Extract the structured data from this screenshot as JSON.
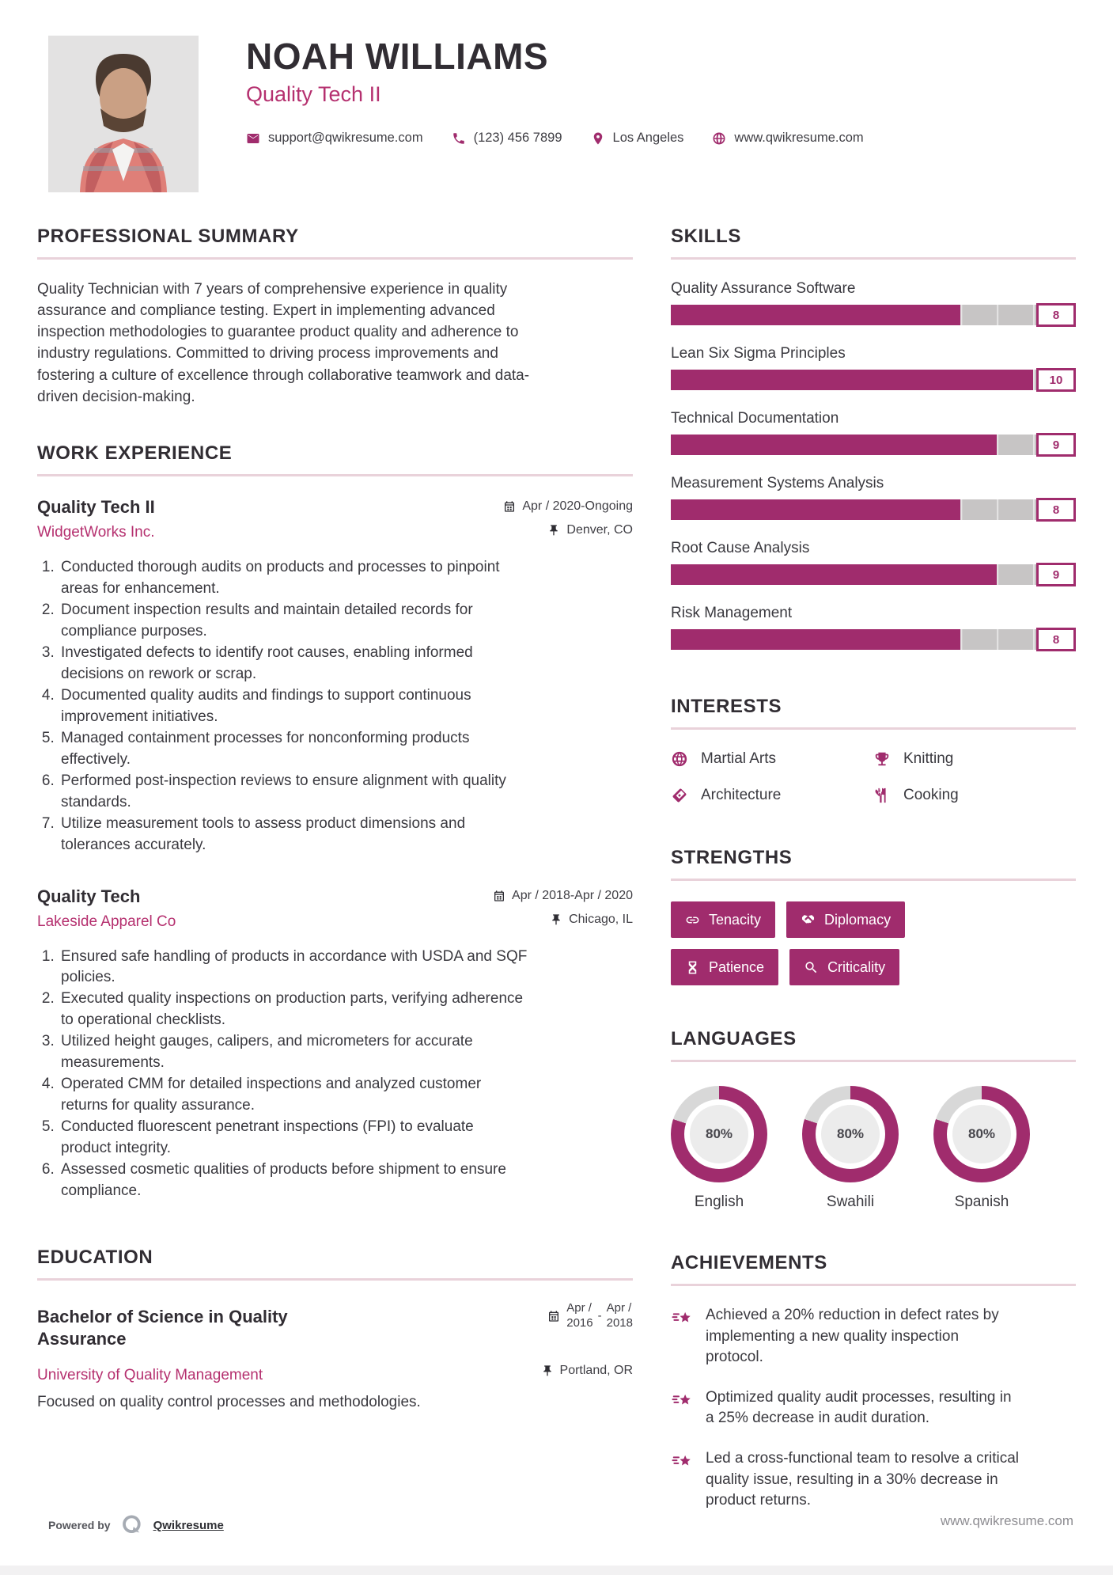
{
  "colors": {
    "primary": "#a02c6d",
    "accent": "#b5306f",
    "rule": "#e9d2da",
    "bar_track": "#c7c5c5",
    "donut_track": "#d8d8d8",
    "donut_inner": "#ececec"
  },
  "header": {
    "name": "NOAH WILLIAMS",
    "title": "Quality Tech II",
    "contact": {
      "email": "support@qwikresume.com",
      "phone": "(123) 456 7899",
      "location": "Los Angeles",
      "website": "www.qwikresume.com"
    }
  },
  "summary": {
    "heading": "PROFESSIONAL SUMMARY",
    "text": "Quality Technician with 7 years of comprehensive experience in quality assurance and compliance testing. Expert in implementing advanced inspection methodologies to guarantee product quality and adherence to industry regulations. Committed to driving process improvements and fostering a culture of excellence through collaborative teamwork and data-driven decision-making."
  },
  "work": {
    "heading": "WORK EXPERIENCE",
    "jobs": [
      {
        "title": "Quality Tech II",
        "company": "WidgetWorks Inc.",
        "dates": "Apr / 2020-Ongoing",
        "location": "Denver, CO",
        "bullets": [
          "Conducted thorough audits on products and processes to pinpoint areas for enhancement.",
          "Document inspection results and maintain detailed records for compliance purposes.",
          "Investigated defects to identify root causes, enabling informed decisions on rework or scrap.",
          "Documented quality audits and findings to support continuous improvement initiatives.",
          "Managed containment processes for nonconforming products effectively.",
          "Performed post-inspection reviews to ensure alignment with quality standards.",
          "Utilize measurement tools to assess product dimensions and tolerances accurately."
        ]
      },
      {
        "title": "Quality Tech",
        "company": "Lakeside Apparel Co",
        "dates": "Apr / 2018-Apr / 2020",
        "location": "Chicago, IL",
        "bullets": [
          "Ensured safe handling of products in accordance with USDA and SQF policies.",
          "Executed quality inspections on production parts, verifying adherence to operational checklists.",
          "Utilized height gauges, calipers, and micrometers for accurate measurements.",
          "Operated CMM for detailed inspections and analyzed customer returns for quality assurance.",
          "Conducted fluorescent penetrant inspections (FPI) to evaluate product integrity.",
          "Assessed cosmetic qualities of products before shipment to ensure compliance."
        ]
      }
    ]
  },
  "education": {
    "heading": "EDUCATION",
    "degree": "Bachelor of Science in Quality Assurance",
    "school": "University of Quality Management",
    "date_start_month": "Apr /",
    "date_start_year": "2016",
    "date_separator": "-",
    "date_end_month": "Apr /",
    "date_end_year": "2018",
    "location": "Portland, OR",
    "description": "Focused on quality control processes and methodologies."
  },
  "skills": {
    "heading": "SKILLS",
    "items": [
      {
        "label": "Quality Assurance Software",
        "value": 8
      },
      {
        "label": "Lean Six Sigma Principles",
        "value": 10
      },
      {
        "label": "Technical Documentation",
        "value": 9
      },
      {
        "label": "Measurement Systems Analysis",
        "value": 8
      },
      {
        "label": "Root Cause Analysis",
        "value": 9
      },
      {
        "label": "Risk Management",
        "value": 8
      }
    ]
  },
  "interests": {
    "heading": "INTERESTS",
    "items": [
      {
        "label": "Martial Arts",
        "icon": "globe-icon"
      },
      {
        "label": "Knitting",
        "icon": "trophy-icon"
      },
      {
        "label": "Architecture",
        "icon": "ticket-icon"
      },
      {
        "label": "Cooking",
        "icon": "utensils-icon"
      }
    ]
  },
  "strengths": {
    "heading": "STRENGTHS",
    "items": [
      {
        "label": "Tenacity",
        "icon": "link-icon"
      },
      {
        "label": "Diplomacy",
        "icon": "handshake-icon"
      },
      {
        "label": "Patience",
        "icon": "hourglass-icon"
      },
      {
        "label": "Criticality",
        "icon": "search-icon"
      }
    ]
  },
  "languages": {
    "heading": "LANGUAGES",
    "items": [
      {
        "label": "English",
        "percent": 80
      },
      {
        "label": "Swahili",
        "percent": 80
      },
      {
        "label": "Spanish",
        "percent": 80
      }
    ]
  },
  "achievements": {
    "heading": "ACHIEVEMENTS",
    "items": [
      "Achieved a 20% reduction in defect rates by implementing a new quality inspection protocol.",
      "Optimized quality audit processes, resulting in a 25% decrease in audit duration.",
      "Led a cross-functional team to resolve a critical quality issue, resulting in a 30% decrease in product returns."
    ]
  },
  "footer": {
    "powered_by": "Powered by",
    "brand": "Qwikresume"
  },
  "watermark": "www.qwikresume.com"
}
